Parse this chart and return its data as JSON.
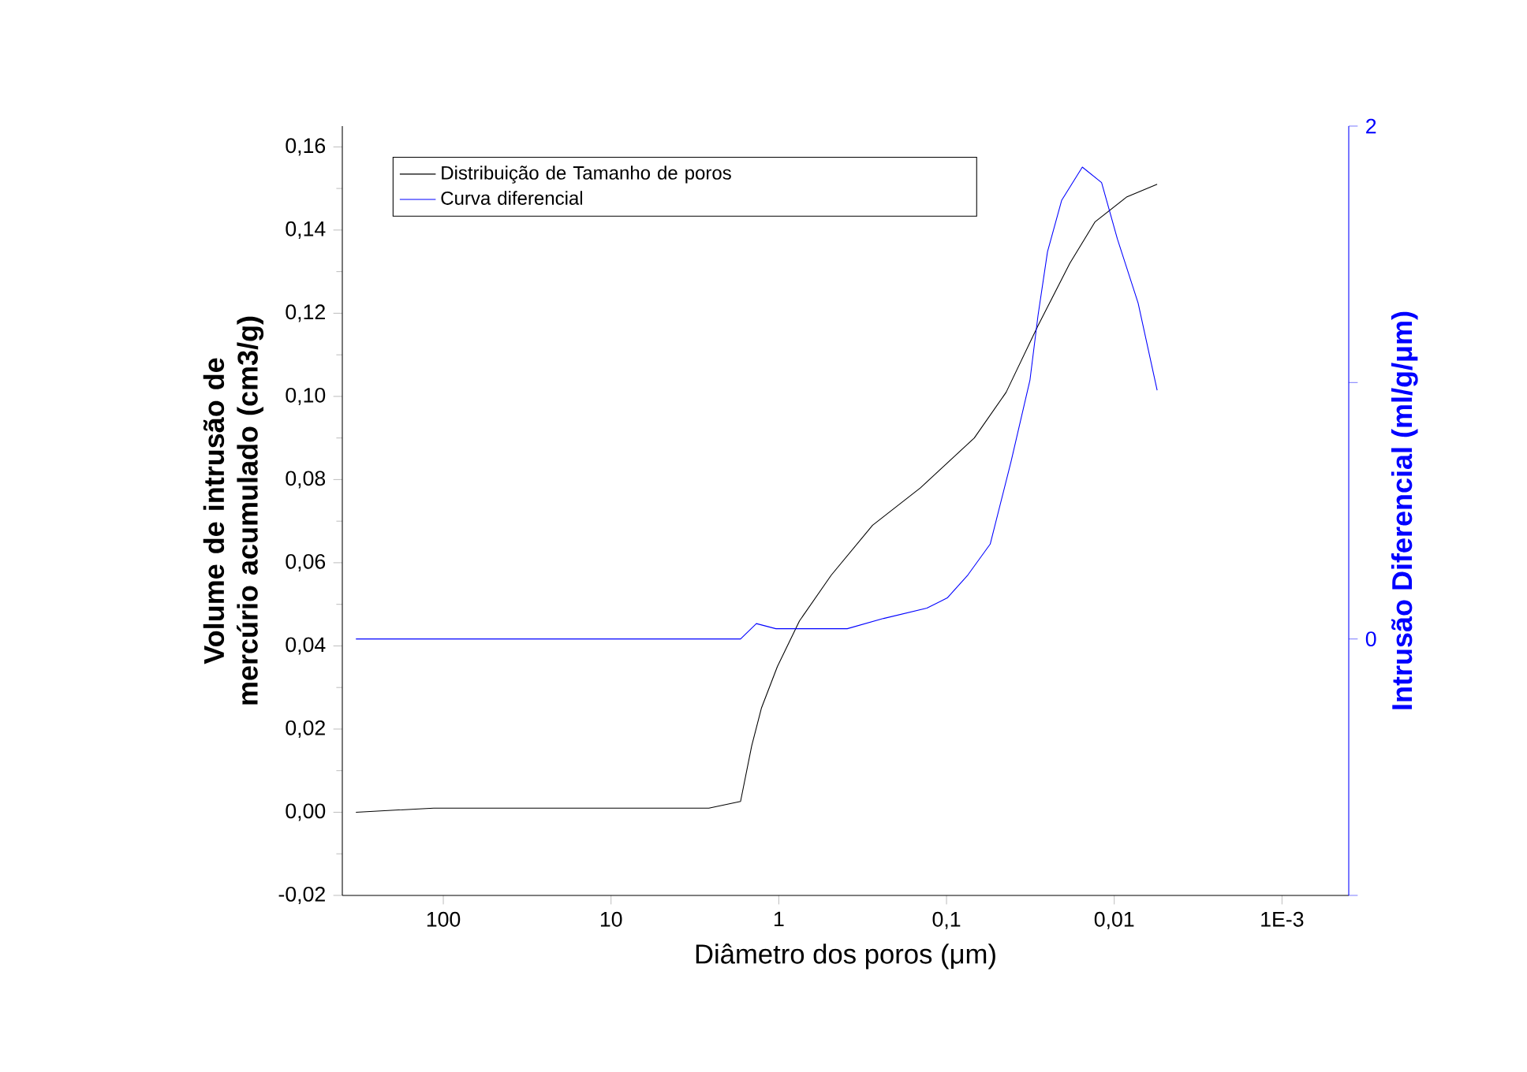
{
  "chart_data": {
    "type": "line",
    "xlabel": "Diâmetro dos poros (μm)",
    "ylabel": "Volume de intrusão de mercúrio acumulado (cm3/g)",
    "y2label": "Intrusão Diferencial (ml/g/μm)",
    "log": "x",
    "xlim": [
      400,
      0.0004
    ],
    "xticks": [
      100,
      10,
      1,
      {
        "value": 0.1,
        "label": "0,1"
      },
      {
        "value": 0.01,
        "label": "0,01"
      },
      {
        "value": 0.001,
        "label": "1E-3"
      }
    ],
    "ylim": [
      -0.02,
      0.165
    ],
    "yticks": [
      {
        "value": -0.02,
        "label": "-0,02"
      },
      {
        "value": 0,
        "label": "0,00"
      },
      {
        "value": 0.02,
        "label": "0,02"
      },
      {
        "value": 0.04,
        "label": "0,04"
      },
      {
        "value": 0.06,
        "label": "0,06"
      },
      {
        "value": 0.08,
        "label": "0,08"
      },
      {
        "value": 0.1,
        "label": "0,10"
      },
      {
        "value": 0.12,
        "label": "0,12"
      },
      {
        "value": 0.14,
        "label": "0,14"
      },
      {
        "value": 0.16,
        "label": "0,16"
      }
    ],
    "y2lim": [
      -1,
      2
    ],
    "y2ticks": [
      {
        "value": -1,
        "label": null
      },
      0,
      {
        "value": 1,
        "label": null
      },
      2
    ],
    "legend": "top left",
    "grid": false,
    "marker": "none",
    "series": [
      {
        "name": "Distribuição de Tamanho de poros",
        "color": "#000000",
        "x": [
          332,
          114,
          2.61,
          1.69,
          1.45,
          1.27,
          1.02,
          0.753,
          0.487,
          0.276,
          0.143,
          0.0683,
          0.0441,
          0.0285,
          0.0184,
          0.013,
          0.0084,
          0.00555
        ],
        "values": [
          0,
          0.001,
          0.001,
          0.0026,
          0.016,
          0.025,
          0.035,
          0.046,
          0.057,
          0.069,
          0.078,
          0.09,
          0.101,
          0.117,
          0.132,
          0.142,
          0.148,
          0.151
        ]
      },
      {
        "name": "Curva diferencial",
        "color": "#0000ff",
        "axis": "y2",
        "x": [
          332,
          1.69,
          1.36,
          1.04,
          0.391,
          0.237,
          0.131,
          0.099,
          0.0745,
          0.0549,
          0.0413,
          0.0318,
          0.0285,
          0.025,
          0.0206,
          0.0155,
          0.0119,
          0.00958,
          0.00721,
          0.00555
        ],
        "values": [
          0,
          0,
          0.06,
          0.04,
          0.04,
          0.08,
          0.12,
          0.16,
          0.25,
          0.37,
          0.69,
          1.01,
          1.26,
          1.51,
          1.71,
          1.84,
          1.78,
          1.56,
          1.31,
          0.97
        ]
      }
    ]
  }
}
